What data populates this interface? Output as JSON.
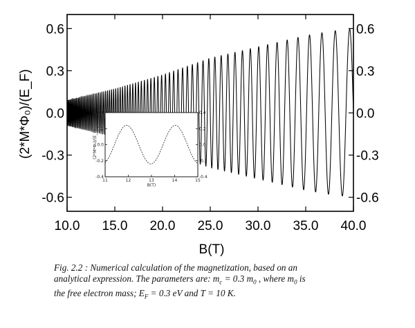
{
  "chart_data": {
    "type": "line",
    "xlabel": "B(T)",
    "ylabel": "(2*M*Φ₀)/(E_F)",
    "xlim": [
      10.0,
      40.0
    ],
    "ylim": [
      -0.7,
      0.7
    ],
    "x_ticks": [
      "10.0",
      "15.0",
      "20.0",
      "25.0",
      "30.0",
      "35.0",
      "40.0"
    ],
    "y_ticks": [
      "0.6",
      "0.3",
      "0.0",
      "-0.3",
      "-0.6"
    ],
    "y_tick_values": [
      0.6,
      0.3,
      0.0,
      -0.3,
      -0.6
    ],
    "x_tick_values": [
      10,
      15,
      20,
      25,
      30,
      35,
      40
    ],
    "series": [
      {
        "oscillation_frequency_T": 1000,
        "amplitude_envelope": {
          "B": [
            10,
            12,
            15,
            20,
            25,
            30,
            35,
            37.5,
            40
          ],
          "amplitude": [
            0.09,
            0.12,
            0.17,
            0.27,
            0.39,
            0.47,
            0.55,
            0.58,
            0.6
          ]
        }
      }
    ],
    "inset": {
      "xlabel": "B(T)",
      "ylabel": "(2*M*Φ₀)/(E_F)",
      "x_ticks": [
        "11",
        "12",
        "13",
        "14",
        "15"
      ],
      "y_ticks_left": [
        "0.4",
        "0.2",
        "0.0",
        "-0.2",
        "-0.4"
      ],
      "y_ticks_right": [
        "0.4",
        "0.2",
        "0.0",
        "-0.2",
        "-0.4"
      ]
    }
  },
  "caption": {
    "line1": "Fig. 2.2 : Numerical calculation of the magnetization, based on an",
    "line2": "analytical  expression. The parameters are: m",
    "line2_sub": "c",
    "line2_rest": " = 0.3 m",
    "line2_sub2": "0",
    "line2_end": " , where m",
    "line2_sub3": "0",
    "line2_tail": " is",
    "line3": "the free  electron mass; E",
    "line3_sub": "F",
    "line3_rest": " = 0.3 eV and T = 10 K."
  }
}
